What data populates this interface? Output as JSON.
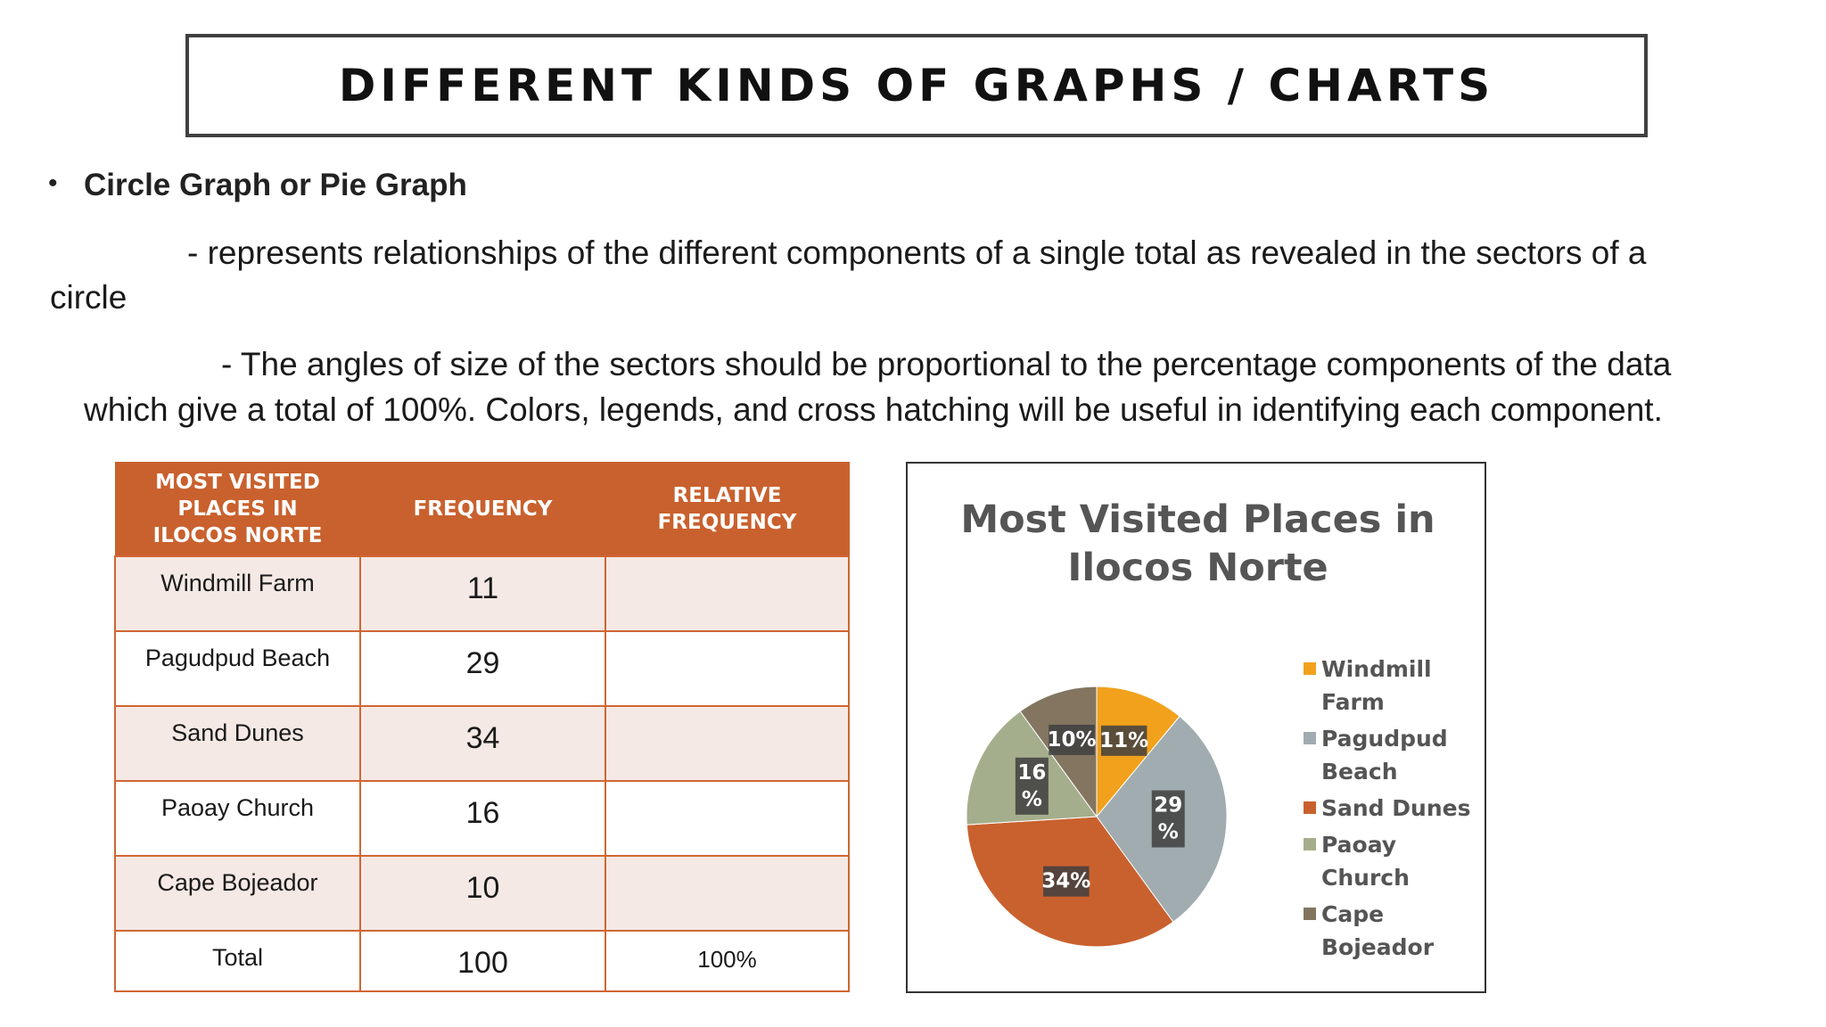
{
  "title": "DIFFERENT KINDS OF GRAPHS / CHARTS",
  "bullet": {
    "dot": "•",
    "heading": "Circle Graph or Pie Graph"
  },
  "paragraphs": {
    "p1_line1": "- represents relationships of the different components of a single total as revealed in the sectors of a",
    "p1_line2": "circle",
    "p2_line1": "- The angles of size of the sectors should be proportional to the percentage components of the data",
    "p2_line2": "which give a total of 100%. Colors, legends, and cross hatching will be useful in identifying each component."
  },
  "table": {
    "headers": {
      "place_line1": "MOST VISITED",
      "place_line2": "PLACES IN",
      "place_line3": "ILOCOS NORTE",
      "frequency": "FREQUENCY",
      "rel_line1": "RELATIVE",
      "rel_line2": "FREQUENCY"
    },
    "rows": [
      {
        "place": "Windmill Farm",
        "frequency": "11",
        "relative": ""
      },
      {
        "place": "Pagudpud Beach",
        "frequency": "29",
        "relative": ""
      },
      {
        "place": "Sand Dunes",
        "frequency": "34",
        "relative": ""
      },
      {
        "place": "Paoay Church",
        "frequency": "16",
        "relative": ""
      },
      {
        "place": "Cape Bojeador",
        "frequency": "10",
        "relative": ""
      }
    ],
    "total": {
      "label": "Total",
      "frequency": "100",
      "relative": "100%"
    }
  },
  "chart_data": {
    "type": "pie",
    "title_line1": "Most Visited Places in",
    "title_line2": "Ilocos Norte",
    "slices": [
      {
        "name": "Windmill Farm",
        "value": 11,
        "label": "11%",
        "color": "#f2a11c",
        "legend_line1": "Windmill",
        "legend_line2": "Farm"
      },
      {
        "name": "Pagudpud Beach",
        "value": 29,
        "label": "29 %",
        "color": "#a1acb0",
        "legend_line1": "Pagudpud",
        "legend_line2": "Beach"
      },
      {
        "name": "Sand Dunes",
        "value": 34,
        "label": "34%",
        "color": "#c9612e",
        "legend_line1": "Sand Dunes",
        "legend_line2": ""
      },
      {
        "name": "Paoay Church",
        "value": 16,
        "label": "16 %",
        "color": "#a5ae8c",
        "legend_line1": "Paoay",
        "legend_line2": "Church"
      },
      {
        "name": "Cape Bojeador",
        "value": 10,
        "label": "10%",
        "color": "#837560",
        "legend_line1": "Cape",
        "legend_line2": "Bojeador"
      }
    ],
    "legend_position": "right"
  }
}
